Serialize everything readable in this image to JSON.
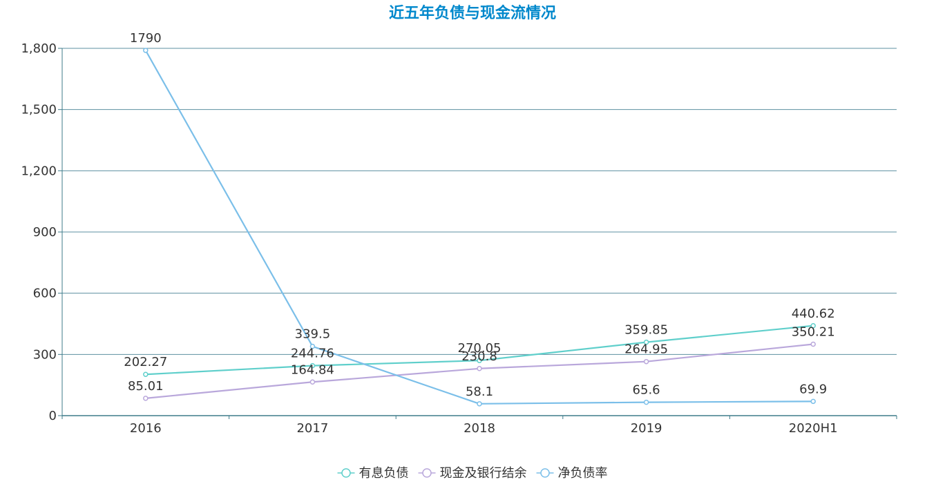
{
  "chart_data": {
    "type": "line",
    "title": "近五年负债与现金流情况",
    "title_color": "#0088cc",
    "categories": [
      "2016",
      "2017",
      "2018",
      "2019",
      "2020H1"
    ],
    "ylim": [
      0,
      1800
    ],
    "yticks": [
      0,
      300,
      600,
      900,
      1200,
      1500,
      1800
    ],
    "ytick_labels": [
      "0",
      "300",
      "600",
      "900",
      "1,200",
      "1,500",
      "1,800"
    ],
    "grid": true,
    "legend_position": "bottom-center",
    "series": [
      {
        "name": "有息负债",
        "color": "#5fcfcb",
        "values": [
          202.27,
          244.76,
          270.05,
          359.85,
          440.62
        ],
        "labels": [
          "202.27",
          "244.76",
          "270.05",
          "359.85",
          "440.62"
        ]
      },
      {
        "name": "现金及银行结余",
        "color": "#b9a7db",
        "values": [
          85.01,
          164.84,
          230.8,
          264.95,
          350.21
        ],
        "labels": [
          "85.01",
          "164.84",
          "230.8",
          "264.95",
          "350.21"
        ]
      },
      {
        "name": "净负债率",
        "color": "#7bbfe9",
        "values": [
          1790,
          339.5,
          58.1,
          65.6,
          69.9
        ],
        "labels": [
          "1790",
          "339.5",
          "58.1",
          "65.6",
          "69.9"
        ]
      }
    ]
  },
  "colors": {
    "grid": "#5b8fa0",
    "axis": "#3d7b8a",
    "tick_text": "#333333"
  }
}
